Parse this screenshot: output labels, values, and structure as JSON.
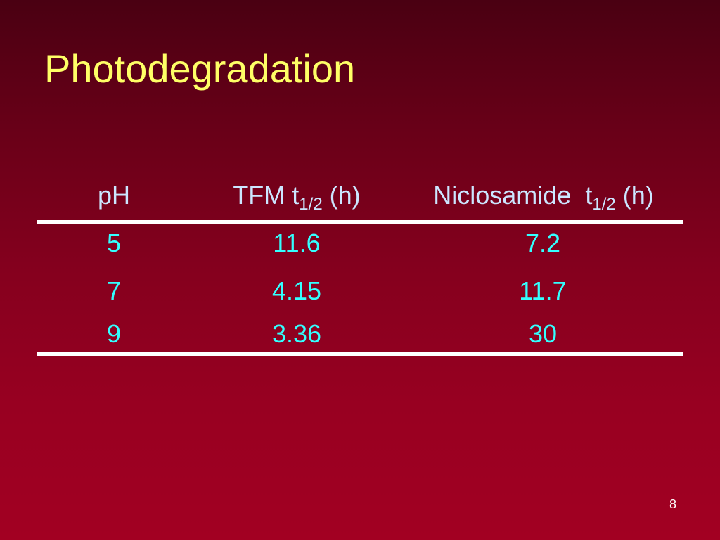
{
  "slide": {
    "title": "Photodegradation",
    "page_number": "8"
  },
  "table": {
    "headers": {
      "ph": "pH",
      "tfm_prefix": "TFM t",
      "tfm_sub": "1/2",
      "tfm_suffix": " (h)",
      "nic_prefix": "Niclosamide  t",
      "nic_sub": "1/2",
      "nic_suffix": " (h)"
    },
    "rows": [
      {
        "ph": "5",
        "tfm": "11.6",
        "niclosamide": "7.2"
      },
      {
        "ph": "7",
        "tfm": "4.15",
        "niclosamide": "11.7"
      },
      {
        "ph": "9",
        "tfm": "3.36",
        "niclosamide": "30"
      }
    ]
  },
  "colors": {
    "background_top": "#4a0012",
    "background_bottom": "#a20022",
    "title": "#ffff66",
    "header_text": "#cce6ff",
    "value_text": "#33ffff",
    "rule": "#ffffff"
  }
}
